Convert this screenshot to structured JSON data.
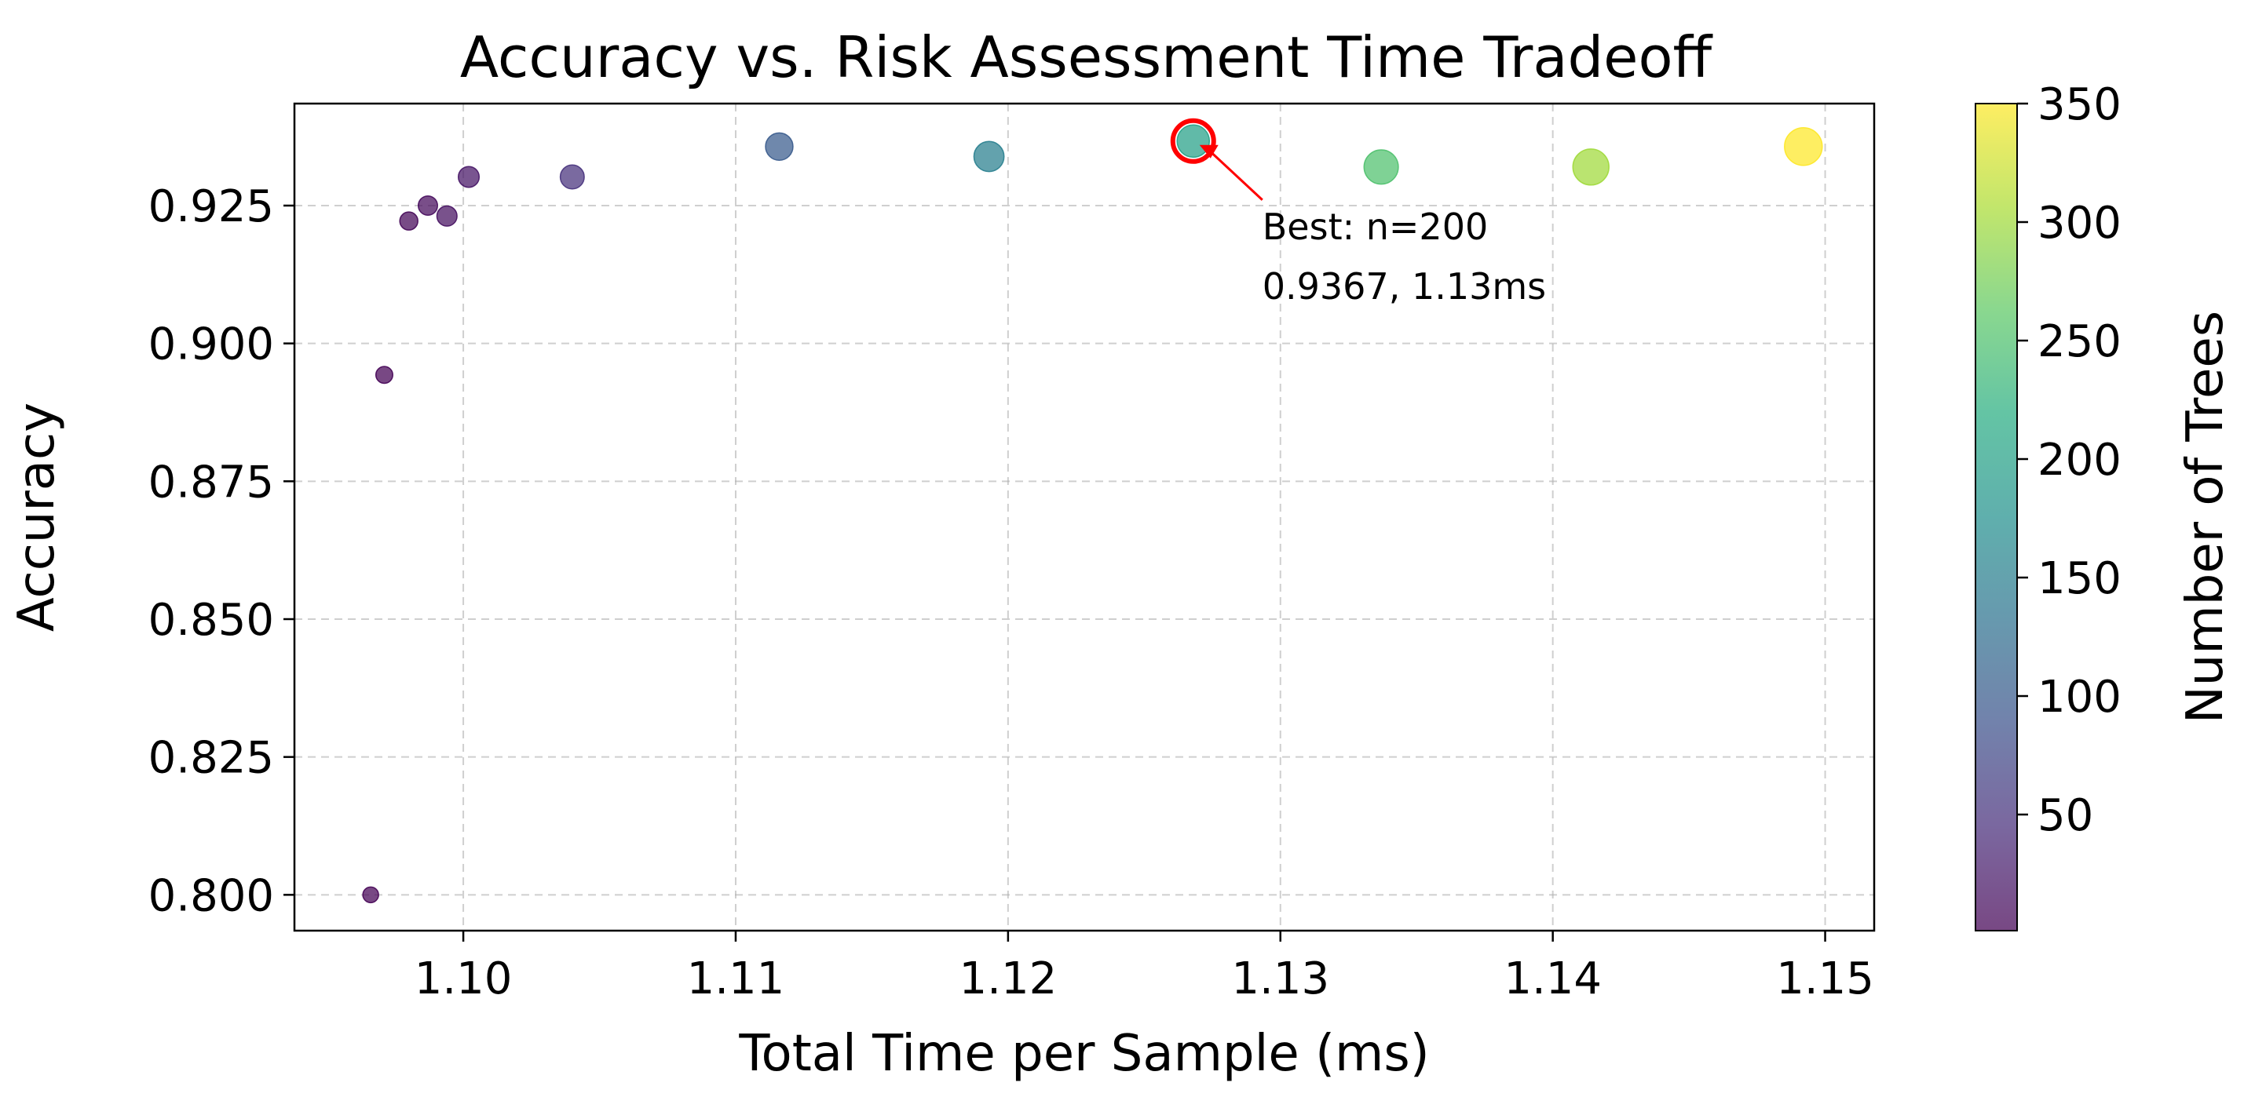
{
  "chart_data": {
    "type": "scatter",
    "title": "Accuracy vs. Risk Assessment Time Tradeoff",
    "xlabel": "Total Time per Sample (ms)",
    "ylabel": "Accuracy",
    "xlim": [
      1.0938,
      1.1518
    ],
    "ylim": [
      0.7935,
      0.9435
    ],
    "xticks": [
      1.1,
      1.11,
      1.12,
      1.13,
      1.14,
      1.15
    ],
    "xtick_labels": [
      "1.10",
      "1.11",
      "1.12",
      "1.13",
      "1.14",
      "1.15"
    ],
    "yticks": [
      0.8,
      0.825,
      0.85,
      0.875,
      0.9,
      0.925
    ],
    "ytick_labels": [
      "0.800",
      "0.825",
      "0.850",
      "0.875",
      "0.900",
      "0.925"
    ],
    "grid": true,
    "colorbar": {
      "label": "Number of Trees",
      "colormap": "viridis",
      "range": [
        1,
        350
      ],
      "ticks": [
        50,
        100,
        150,
        200,
        250,
        300,
        350
      ],
      "tick_labels": [
        "50",
        "100",
        "150",
        "200",
        "250",
        "300",
        "350"
      ]
    },
    "points": [
      {
        "x": 1.0966,
        "y": 0.8,
        "trees": 1
      },
      {
        "x": 1.0971,
        "y": 0.8943,
        "trees": 2
      },
      {
        "x": 1.098,
        "y": 0.9222,
        "trees": 5
      },
      {
        "x": 1.0987,
        "y": 0.925,
        "trees": 10
      },
      {
        "x": 1.0994,
        "y": 0.9231,
        "trees": 15
      },
      {
        "x": 1.1002,
        "y": 0.9302,
        "trees": 20
      },
      {
        "x": 1.104,
        "y": 0.9302,
        "trees": 50
      },
      {
        "x": 1.1116,
        "y": 0.9357,
        "trees": 100
      },
      {
        "x": 1.1193,
        "y": 0.9339,
        "trees": 150
      },
      {
        "x": 1.1268,
        "y": 0.9367,
        "trees": 200
      },
      {
        "x": 1.1337,
        "y": 0.932,
        "trees": 250
      },
      {
        "x": 1.1414,
        "y": 0.932,
        "trees": 300
      },
      {
        "x": 1.1492,
        "y": 0.9357,
        "trees": 350
      }
    ],
    "highlight": {
      "x": 1.1268,
      "y": 0.9367,
      "color": "#ff0000"
    },
    "annotation": {
      "lines": [
        "Best: n=200",
        "0.9367, 1.13ms"
      ],
      "arrow_color": "#ff0000"
    }
  }
}
